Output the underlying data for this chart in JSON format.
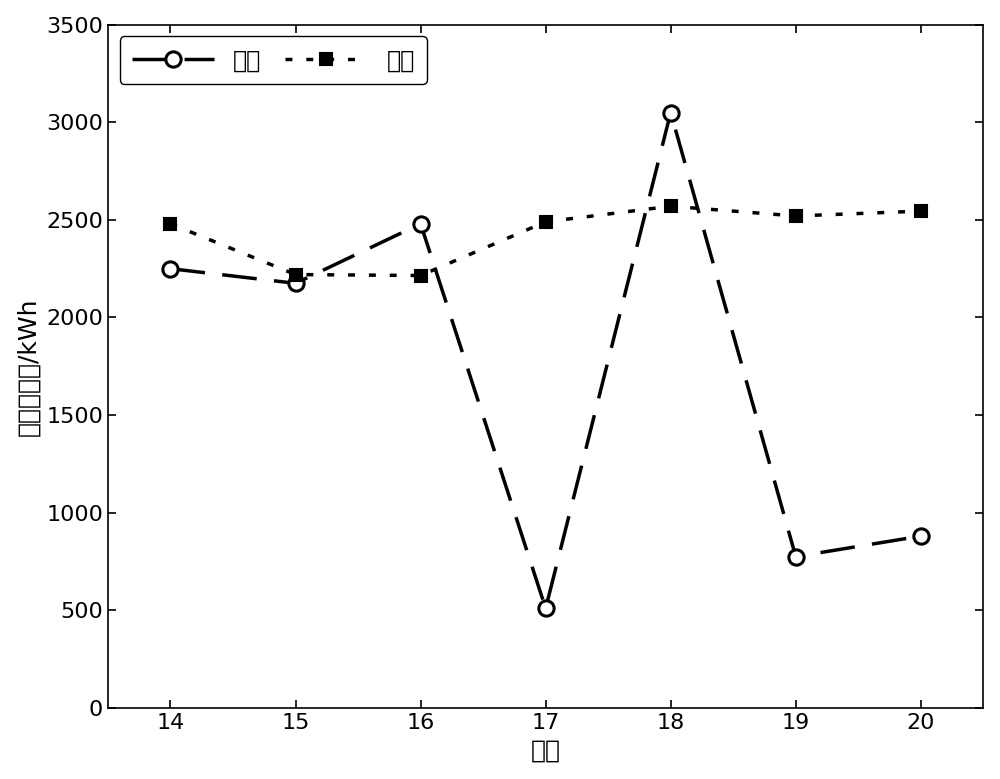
{
  "x": [
    14,
    15,
    16,
    17,
    18,
    19,
    20
  ],
  "pv_y": [
    2250,
    2175,
    2480,
    510,
    3050,
    775,
    880
  ],
  "load_y": [
    2480,
    2220,
    2215,
    2490,
    2570,
    2520,
    2545
  ],
  "pv_label": "光伏",
  "load_label": "负荷",
  "xlabel": "天数",
  "ylabel": "能量预测值/kWh",
  "xlim": [
    13.5,
    20.5
  ],
  "ylim": [
    0,
    3500
  ],
  "yticks": [
    0,
    500,
    1000,
    1500,
    2000,
    2500,
    3000,
    3500
  ],
  "xticks": [
    14,
    15,
    16,
    17,
    18,
    19,
    20
  ],
  "line_color": "#000000",
  "bg_color": "#ffffff",
  "fontsize_label": 18,
  "fontsize_tick": 16,
  "fontsize_legend": 17,
  "linewidth": 2.5,
  "markersize": 11
}
